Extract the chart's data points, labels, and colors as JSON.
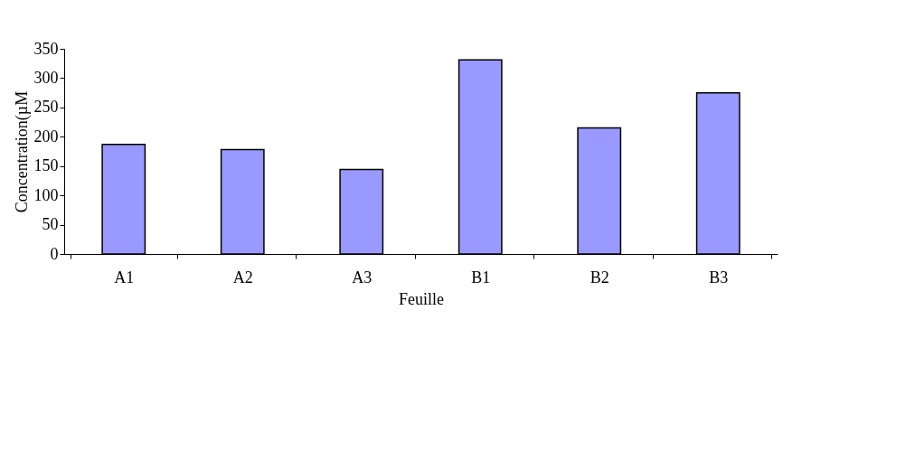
{
  "chart_data": {
    "type": "bar",
    "xlabel": "Feuille",
    "ylabel": "Concentration(µM",
    "categories": [
      "A1",
      "A2",
      "A3",
      "B1",
      "B2",
      "B3"
    ],
    "values": [
      187,
      178,
      144,
      331,
      215,
      275
    ],
    "color": "#9999ff",
    "ylim": [
      0,
      350
    ],
    "yticks": [
      0,
      50,
      100,
      150,
      200,
      250,
      300,
      350
    ],
    "grid": false
  }
}
